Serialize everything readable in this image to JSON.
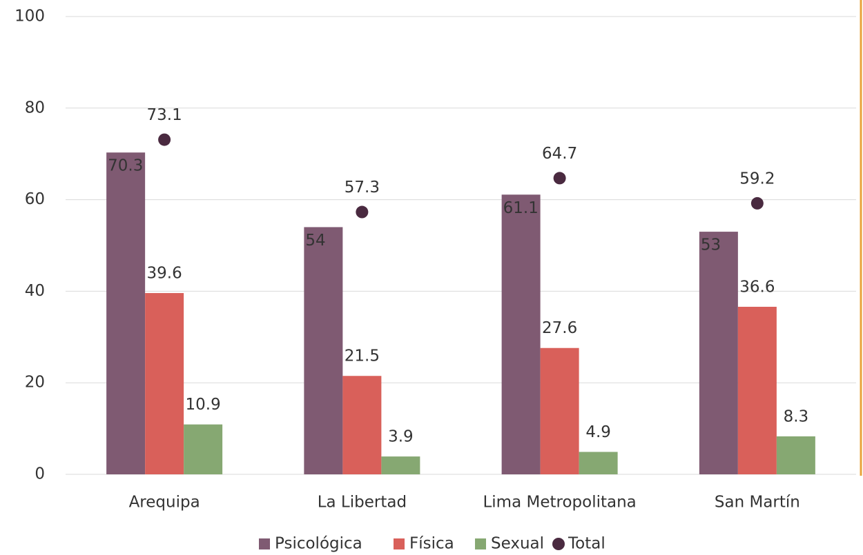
{
  "chart_data": {
    "type": "bar",
    "categories": [
      "Arequipa",
      "La Libertad",
      "Lima Metropolitana",
      "San Martín"
    ],
    "series": [
      {
        "name": "Psicológica",
        "color": "#7f5a72",
        "values": [
          70.3,
          54,
          61.1,
          53
        ]
      },
      {
        "name": "Física",
        "color": "#d9605a",
        "values": [
          39.6,
          21.5,
          27.6,
          36.6
        ]
      },
      {
        "name": "Sexual",
        "color": "#86a872",
        "values": [
          10.9,
          3.9,
          4.9,
          8.3
        ]
      },
      {
        "name": "Total",
        "color": "#4a2a40",
        "type": "scatter",
        "values": [
          73.1,
          57.3,
          64.7,
          59.2
        ]
      }
    ],
    "ylim": [
      0,
      100
    ],
    "yticks": [
      0,
      20,
      40,
      60,
      80,
      100
    ],
    "grid": true,
    "legend": "bottom"
  }
}
